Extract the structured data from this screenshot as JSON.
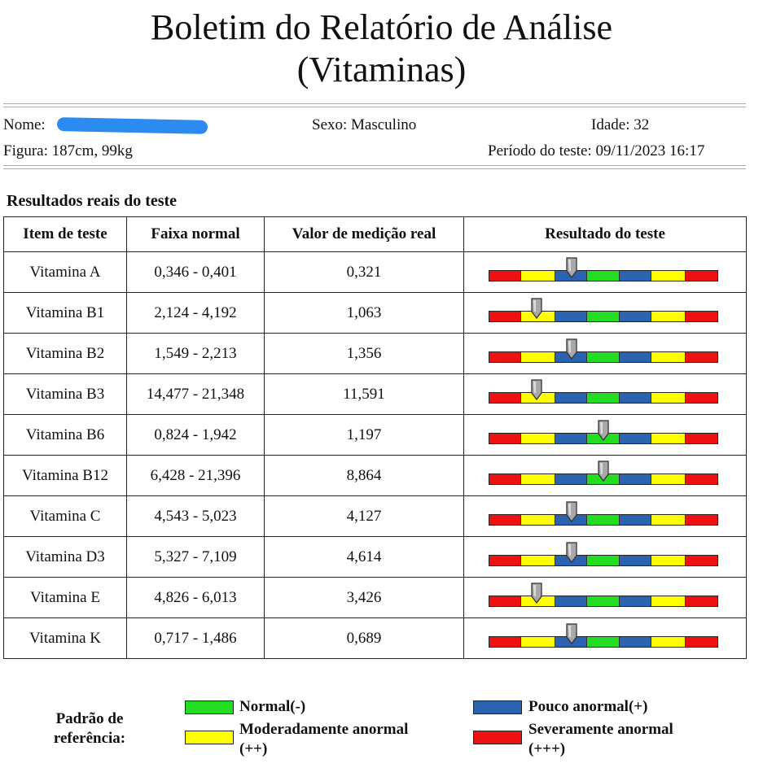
{
  "header": {
    "title_line1": "Boletim do Relatório de Análise",
    "title_line2": "(Vitaminas)"
  },
  "patient": {
    "name_label": "Nome:",
    "sex": "Sexo: Masculino",
    "age": "Idade: 32",
    "figure": "Figura: 187cm, 99kg",
    "period": "Período do teste: 09/11/2023 16:17"
  },
  "section_title": "Resultados reais do teste",
  "table": {
    "headers": [
      "Item de teste",
      "Faixa normal",
      "Valor de medição real",
      "Resultado do teste"
    ],
    "rows": [
      {
        "item": "Vitamina A",
        "range": "0,346 - 0,401",
        "value": "0,321",
        "level": 0.36
      },
      {
        "item": "Vitamina B1",
        "range": "2,124 - 4,192",
        "value": "1,063",
        "level": 0.21
      },
      {
        "item": "Vitamina B2",
        "range": "1,549 - 2,213",
        "value": "1,356",
        "level": 0.36
      },
      {
        "item": "Vitamina B3",
        "range": "14,477 - 21,348",
        "value": "11,591",
        "level": 0.21
      },
      {
        "item": "Vitamina B6",
        "range": "0,824 - 1,942",
        "value": "1,197",
        "level": 0.5
      },
      {
        "item": "Vitamina B12",
        "range": "6,428 - 21,396",
        "value": "8,864",
        "level": 0.5
      },
      {
        "item": "Vitamina C",
        "range": "4,543 - 5,023",
        "value": "4,127",
        "level": 0.36
      },
      {
        "item": "Vitamina D3",
        "range": "5,327 - 7,109",
        "value": "4,614",
        "level": 0.36
      },
      {
        "item": "Vitamina E",
        "range": "4,826 - 6,013",
        "value": "3,426",
        "level": 0.21
      },
      {
        "item": "Vitamina K",
        "range": "0,717 - 1,486",
        "value": "0,689",
        "level": 0.36
      }
    ]
  },
  "scale_segments": [
    {
      "color": "#ee1111",
      "weight": 0.14
    },
    {
      "color": "#ffff00",
      "weight": 0.15
    },
    {
      "color": "#2b63b0",
      "weight": 0.14
    },
    {
      "color": "#22dd22",
      "weight": 0.14
    },
    {
      "color": "#2b63b0",
      "weight": 0.14
    },
    {
      "color": "#ffff00",
      "weight": 0.15
    },
    {
      "color": "#ee1111",
      "weight": 0.14
    }
  ],
  "legend": {
    "label_line1": "Padrão de",
    "label_line2": "referência:",
    "items": [
      {
        "text1": "Normal(-)",
        "text2": "",
        "color": "#22dd22"
      },
      {
        "text1": "Pouco anormal(+)",
        "text2": "",
        "color": "#2b63b0"
      },
      {
        "text1": "Moderadamente anormal",
        "text2": "(++)",
        "color": "#ffff00"
      },
      {
        "text1": "Severamente anormal",
        "text2": "(+++)",
        "color": "#ee1111"
      }
    ]
  }
}
